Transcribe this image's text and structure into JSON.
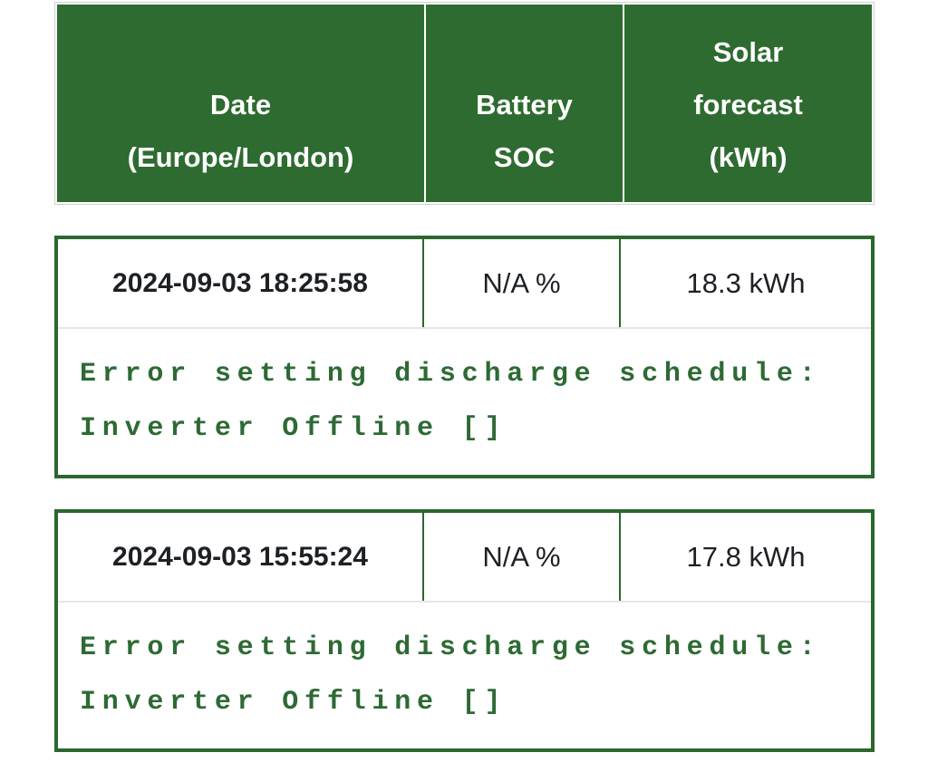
{
  "header": {
    "columns": [
      {
        "id": "date",
        "lines": [
          "Date",
          "(Europe/London)"
        ]
      },
      {
        "id": "battery_soc",
        "lines": [
          "Battery",
          "SOC"
        ]
      },
      {
        "id": "solar_forecast",
        "lines": [
          "Solar",
          "forecast",
          "(kWh)"
        ]
      }
    ]
  },
  "entries": [
    {
      "date": "2024-09-03 18:25:58",
      "battery_soc": "N/A %",
      "solar_forecast": "18.3 kWh",
      "status_message": "Error setting discharge schedule: Inverter Offline []"
    },
    {
      "date": "2024-09-03 15:55:24",
      "battery_soc": "N/A %",
      "solar_forecast": "17.8 kWh",
      "status_message": "Error setting discharge schedule: Inverter Offline []"
    }
  ],
  "colors": {
    "header_bg": "#2e6b30",
    "header_text": "#ffffff",
    "card_border": "#2c672e",
    "error_text": "#2d6a34",
    "value_text": "#1d2024",
    "row_separator": "#e4e6e8",
    "header_outline": "#ccd2cc"
  }
}
